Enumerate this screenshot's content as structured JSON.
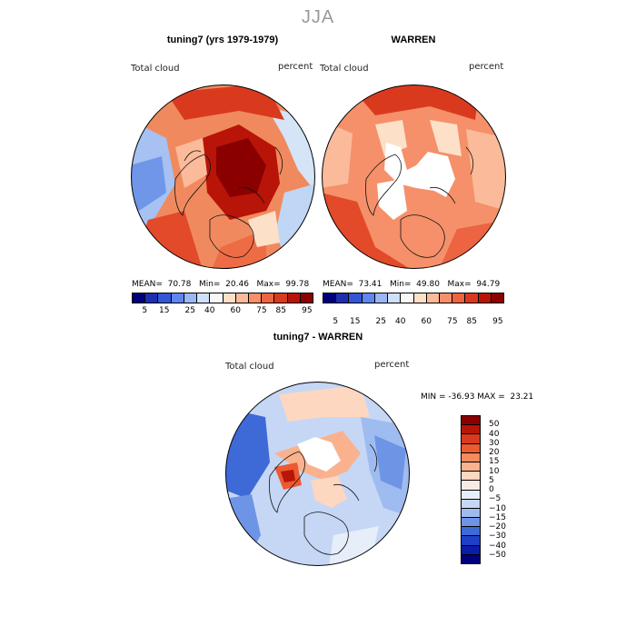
{
  "season": "JJA",
  "panels": [
    {
      "title": "tuning7 (yrs 1979-1979)",
      "var_label": "Total cloud",
      "unit_label": "percent",
      "stats": "MEAN=  70.78   Min=  20.46   Max=  99.78",
      "field": "high-arctic"
    },
    {
      "title": "WARREN",
      "var_label": "Total cloud",
      "unit_label": "percent",
      "stats": "MEAN=  73.41   Min=  49.80   Max=  94.79",
      "field": "warren"
    },
    {
      "title": "tuning7 - WARREN",
      "var_label": "Total cloud",
      "unit_label": "percent",
      "stats": "MIN = -36.93 MAX =  23.21",
      "field": "diff"
    }
  ],
  "abs_colorbar": {
    "ticks": [
      "5",
      "15",
      "25",
      "40",
      "60",
      "75",
      "85",
      "95"
    ],
    "colors": [
      "#00007f",
      "#1e2eb0",
      "#3356d6",
      "#5f86ee",
      "#9ab6f4",
      "#cfe0f8",
      "#f7f7f7",
      "#fde0c8",
      "#fbbb9a",
      "#f5906a",
      "#ec6441",
      "#d93a1e",
      "#b81408",
      "#8a0000"
    ]
  },
  "diff_colorbar": {
    "ticks": [
      "50",
      "40",
      "30",
      "20",
      "15",
      "10",
      "5",
      "0",
      "−5",
      "−10",
      "−15",
      "−20",
      "−30",
      "−40",
      "−50"
    ],
    "colors": [
      "#8a0000",
      "#b81408",
      "#d93a1e",
      "#ec5a30",
      "#f58a5e",
      "#fab28e",
      "#fdd7bf",
      "#f9ebe3",
      "#e6eefa",
      "#c6d7f5",
      "#9fbcf0",
      "#6e94e6",
      "#3e6ad8",
      "#1f3fc8",
      "#0a1ca8",
      "#00007f"
    ]
  }
}
